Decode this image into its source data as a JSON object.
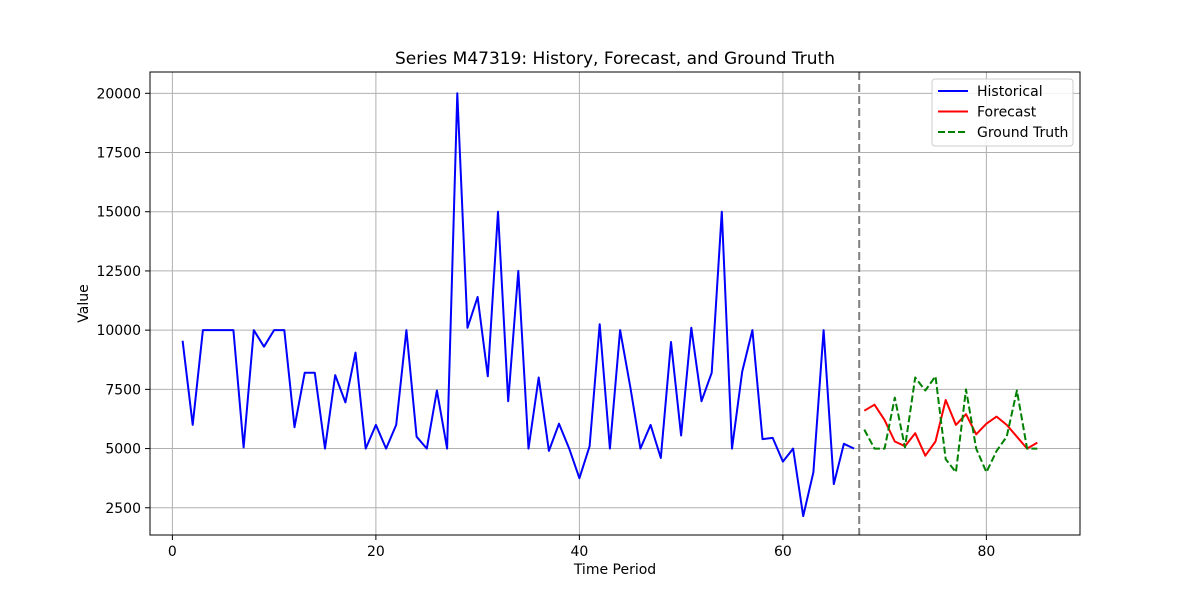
{
  "chart_data": {
    "type": "line",
    "title": "Series M47319: History, Forecast, and Ground Truth",
    "xlabel": "Time Period",
    "ylabel": "Value",
    "xlim": [
      -2.2,
      89.2
    ],
    "ylim": [
      1350,
      20900
    ],
    "xticks": [
      0,
      20,
      40,
      60,
      80
    ],
    "yticks": [
      2500,
      5000,
      7500,
      10000,
      12500,
      15000,
      17500,
      20000
    ],
    "grid": true,
    "legend_position": "top-right",
    "forecast_start": 67.5,
    "series": [
      {
        "name": "Historical",
        "color": "#0000ff",
        "style": "solid",
        "x": [
          1,
          2,
          3,
          4,
          5,
          6,
          7,
          8,
          9,
          10,
          11,
          12,
          13,
          14,
          15,
          16,
          17,
          18,
          19,
          20,
          21,
          22,
          23,
          24,
          25,
          26,
          27,
          28,
          29,
          30,
          31,
          32,
          33,
          34,
          35,
          36,
          37,
          38,
          39,
          40,
          41,
          42,
          43,
          44,
          45,
          46,
          47,
          48,
          49,
          50,
          51,
          52,
          53,
          54,
          55,
          56,
          57,
          58,
          59,
          60,
          61,
          62,
          63,
          64,
          65,
          66,
          67
        ],
        "y": [
          9550,
          6000,
          10000,
          10000,
          10000,
          10000,
          5050,
          10000,
          9300,
          10000,
          10000,
          5900,
          8200,
          8200,
          5000,
          8100,
          6950,
          9050,
          5000,
          6000,
          5000,
          6000,
          10000,
          5500,
          5000,
          7450,
          5000,
          20000,
          10100,
          11400,
          8050,
          15000,
          7000,
          12500,
          5000,
          8000,
          4900,
          6050,
          5000,
          3750,
          5100,
          10250,
          5000,
          10000,
          7600,
          5000,
          6000,
          4600,
          9500,
          5550,
          10100,
          7000,
          8200,
          15000,
          5000,
          8250,
          10000,
          5400,
          5450,
          4450,
          5000,
          2150,
          4000,
          10000,
          3500,
          5200,
          5000
        ]
      },
      {
        "name": "Forecast",
        "color": "#ff0000",
        "style": "solid",
        "x": [
          68,
          69,
          70,
          71,
          72,
          73,
          74,
          75,
          76,
          77,
          78,
          79,
          80,
          81,
          82,
          83,
          84,
          85
        ],
        "y": [
          6600,
          6850,
          6200,
          5300,
          5100,
          5650,
          4700,
          5300,
          7050,
          6000,
          6450,
          5600,
          6050,
          6350,
          6000,
          5500,
          5000,
          5250
        ]
      },
      {
        "name": "Ground Truth",
        "color": "#008000",
        "style": "dashed",
        "x": [
          68,
          69,
          70,
          71,
          72,
          73,
          74,
          75,
          76,
          77,
          78,
          79,
          80,
          81,
          82,
          83,
          84,
          85
        ],
        "y": [
          5800,
          5000,
          5000,
          7150,
          5050,
          8000,
          7450,
          8050,
          4550,
          4000,
          7500,
          5000,
          4000,
          4900,
          5500,
          7450,
          5000,
          5000
        ]
      }
    ]
  }
}
